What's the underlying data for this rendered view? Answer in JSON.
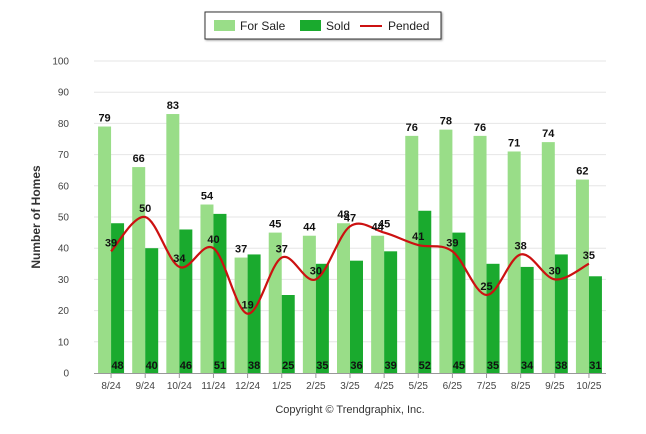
{
  "chart_data": {
    "type": "bar",
    "title": "",
    "xlabel": "",
    "ylabel": "Number of Homes",
    "ylim": [
      0,
      100
    ],
    "yticks": [
      0,
      10,
      20,
      30,
      40,
      50,
      60,
      70,
      80,
      90,
      100
    ],
    "grid": true,
    "legend_position": "top-center",
    "categories": [
      "8/24",
      "9/24",
      "10/24",
      "11/24",
      "12/24",
      "1/25",
      "2/25",
      "3/25",
      "4/25",
      "5/25",
      "6/25",
      "7/25",
      "8/25",
      "9/25",
      "10/25"
    ],
    "series": [
      {
        "name": "For Sale",
        "kind": "bar",
        "color": "#99dd88",
        "values": [
          79,
          66,
          83,
          54,
          37,
          45,
          44,
          48,
          44,
          76,
          78,
          76,
          71,
          74,
          62
        ]
      },
      {
        "name": "Sold",
        "kind": "bar",
        "color": "#1aaa2e",
        "values": [
          48,
          40,
          46,
          51,
          38,
          25,
          35,
          36,
          39,
          52,
          45,
          35,
          34,
          38,
          31
        ]
      },
      {
        "name": "Pended",
        "kind": "line",
        "color": "#cc1111",
        "values": [
          39,
          50,
          34,
          40,
          19,
          37,
          30,
          47,
          45,
          41,
          39,
          25,
          38,
          30,
          35
        ]
      }
    ]
  },
  "legend": {
    "items": [
      {
        "label": "For Sale",
        "color": "#99dd88"
      },
      {
        "label": "Sold",
        "color": "#1aaa2e"
      },
      {
        "label": "Pended",
        "color": "#cc1111"
      }
    ]
  },
  "footer": {
    "copyright": "Copyright © Trendgraphix, Inc."
  }
}
